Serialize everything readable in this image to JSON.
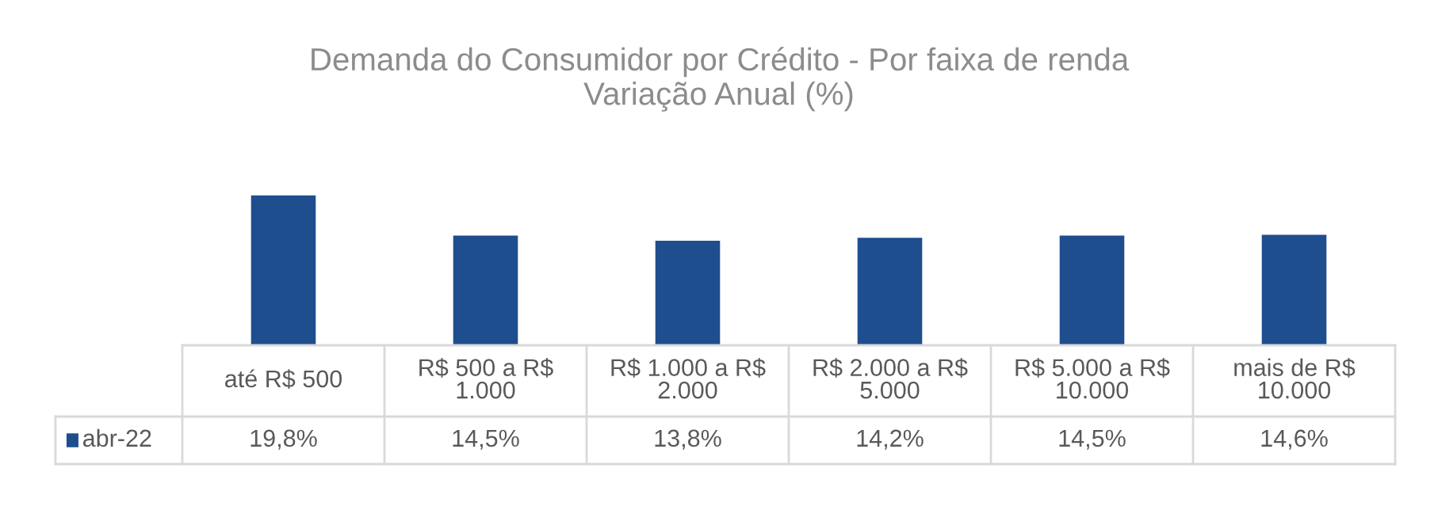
{
  "chart_data": {
    "type": "bar",
    "title": "Demanda do Consumidor por Crédito - Por faixa de renda\nVariação Anual (%)",
    "categories": [
      "até R$ 500",
      "R$ 500 a R$ 1.000",
      "R$ 1.000 a R$ 2.000",
      "R$ 2.000 a R$ 5.000",
      "R$ 5.000 a R$ 10.000",
      "mais de R$ 10.000"
    ],
    "series": [
      {
        "name": "abr-22",
        "color": "#1f4e8f",
        "values": [
          19.8,
          14.5,
          13.8,
          14.2,
          14.5,
          14.6
        ],
        "value_labels": [
          "19,8%",
          "14,5%",
          "13,8%",
          "14,2%",
          "14,5%",
          "14,6%"
        ]
      }
    ],
    "legend": "bottom left"
  }
}
